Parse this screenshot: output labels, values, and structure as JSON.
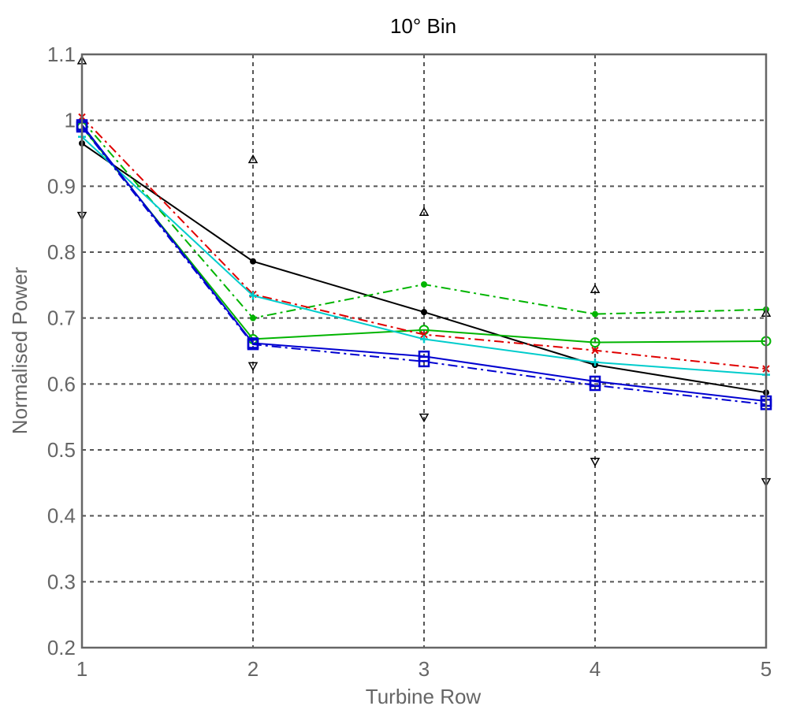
{
  "chart_data": {
    "type": "line",
    "title": "10° Bin",
    "xlabel": "Turbine Row",
    "ylabel": "Normalised Power",
    "xlim": [
      1,
      5
    ],
    "ylim": [
      0.2,
      1.1
    ],
    "x_ticks": [
      "1",
      "2",
      "3",
      "4",
      "5"
    ],
    "y_ticks": [
      "0.2",
      "0.3",
      "0.4",
      "0.5",
      "0.6",
      "0.7",
      "0.8",
      "0.9",
      "1",
      "1.1"
    ],
    "grid": true,
    "x": [
      1,
      2,
      3,
      4,
      5
    ],
    "series": [
      {
        "color": "#000000",
        "line": "solid",
        "marker": "dot",
        "values": [
          0.965,
          0.786,
          0.709,
          0.629,
          0.587
        ]
      },
      {
        "color": "#00b400",
        "line": "dashdot",
        "marker": "dot",
        "values": [
          1.0,
          0.7,
          0.751,
          0.706,
          0.713
        ]
      },
      {
        "color": "#00b400",
        "line": "solid",
        "marker": "circle",
        "values": [
          0.99,
          0.668,
          0.682,
          0.663,
          0.665
        ]
      },
      {
        "color": "#e00000",
        "line": "dashdot",
        "marker": "x",
        "values": [
          1.005,
          0.736,
          0.675,
          0.651,
          0.623
        ]
      },
      {
        "color": "#00cccc",
        "line": "solid",
        "marker": "plus",
        "values": [
          0.975,
          0.734,
          0.668,
          0.633,
          0.614
        ]
      },
      {
        "color": "#0000d0",
        "line": "solid",
        "marker": "square",
        "values": [
          0.993,
          0.662,
          0.642,
          0.604,
          0.574
        ]
      },
      {
        "color": "#0000d0",
        "line": "dashdot",
        "marker": "square",
        "values": [
          0.99,
          0.66,
          0.634,
          0.598,
          0.569
        ]
      },
      {
        "color": "#000000",
        "line": "none",
        "marker": "triangle-up",
        "values": [
          1.09,
          0.94,
          0.86,
          0.743,
          0.707
        ]
      },
      {
        "color": "#000000",
        "line": "none",
        "marker": "triangle-down",
        "values": [
          0.856,
          0.628,
          0.55,
          0.483,
          0.452
        ]
      }
    ]
  }
}
